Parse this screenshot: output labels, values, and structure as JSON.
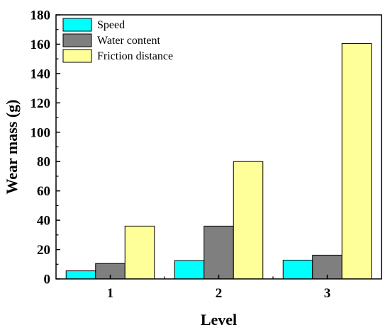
{
  "chart_data": {
    "type": "bar",
    "title": "",
    "xlabel": "Level",
    "ylabel": "Wear mass (g)",
    "categories": [
      "1",
      "2",
      "3"
    ],
    "ylim": [
      0,
      180
    ],
    "yticks": [
      "0",
      "20",
      "40",
      "60",
      "80",
      "100",
      "120",
      "140",
      "160",
      "180"
    ],
    "legend_position": "top-left",
    "grid": false,
    "series": [
      {
        "name": "Speed",
        "color": "#00ffff",
        "values": [
          5.5,
          12.5,
          12.8
        ]
      },
      {
        "name": "Water content",
        "color": "#7f7f7f",
        "values": [
          10.5,
          36,
          16.2
        ]
      },
      {
        "name": "Friction distance",
        "color": "#ffff99",
        "values": [
          36,
          80,
          160.5
        ]
      }
    ]
  }
}
